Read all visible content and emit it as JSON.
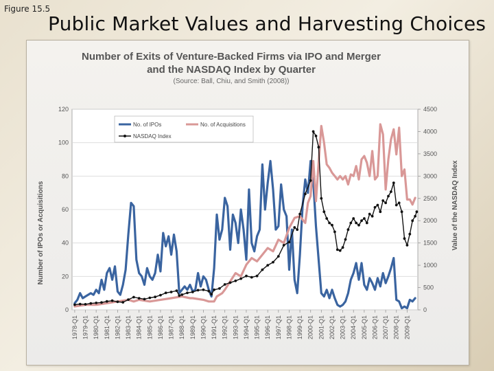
{
  "slide": {
    "figure_label": "Figure 15.5",
    "title": "Public Market Values and Harvesting Choices"
  },
  "chart_data": {
    "type": "line",
    "title_line1": "Number of Exits of Venture-Backed Firms via IPO and Merger",
    "title_line2": "and the NASDAQ Index by Quarter",
    "source": "(Source:  Ball, Chiu, and Smith (2008))",
    "ylabel_left": "Number of IPOs or Acquisitions",
    "ylabel_right": "Value of the NASDAQ Index",
    "ylim_left": [
      0,
      120
    ],
    "ylim_right": [
      0,
      4500
    ],
    "yticks_left": [
      "0",
      "20",
      "40",
      "60",
      "80",
      "100",
      "120"
    ],
    "yticks_right": [
      "0",
      "500",
      "1000",
      "1500",
      "2000",
      "2500",
      "3000",
      "3500",
      "4000",
      "4500"
    ],
    "x_tick_labels": [
      "1978-Q1",
      "1979-Q1",
      "1980-Q1",
      "1981-Q1",
      "1982-Q1",
      "1983-Q1",
      "1984-Q1",
      "1985-Q1",
      "1986-Q1",
      "1987-Q1",
      "1988-Q1",
      "1989-Q1",
      "1990-Q1",
      "1991-Q1",
      "1992-Q1",
      "1993-Q1",
      "1994-Q1",
      "1995-Q1",
      "1996-Q1",
      "1997-Q1",
      "1998-Q1",
      "1999-Q1",
      "2000-Q1",
      "2001-Q1",
      "2002-Q1",
      "2003-Q1",
      "2004-Q1",
      "2005-Q1",
      "2006-Q1",
      "2007-Q1",
      "2008-Q1",
      "2009-Q1"
    ],
    "grid": true,
    "legend_position": "top-left",
    "series": [
      {
        "name": "No. of IPOs",
        "axis": "left",
        "color": "#3a64a0",
        "points": [
          [
            1978.0,
            4
          ],
          [
            1978.25,
            6
          ],
          [
            1978.5,
            10
          ],
          [
            1978.75,
            7
          ],
          [
            1979.0,
            8
          ],
          [
            1979.25,
            9
          ],
          [
            1979.5,
            10
          ],
          [
            1979.75,
            9
          ],
          [
            1980.0,
            12
          ],
          [
            1980.25,
            10
          ],
          [
            1980.5,
            18
          ],
          [
            1980.75,
            12
          ],
          [
            1981.0,
            22
          ],
          [
            1981.25,
            25
          ],
          [
            1981.5,
            18
          ],
          [
            1981.75,
            26
          ],
          [
            1982.0,
            11
          ],
          [
            1982.25,
            9
          ],
          [
            1982.5,
            15
          ],
          [
            1982.75,
            24
          ],
          [
            1983.0,
            45
          ],
          [
            1983.25,
            64
          ],
          [
            1983.5,
            62
          ],
          [
            1983.75,
            30
          ],
          [
            1984.0,
            22
          ],
          [
            1984.25,
            20
          ],
          [
            1984.5,
            15
          ],
          [
            1984.75,
            25
          ],
          [
            1985.0,
            20
          ],
          [
            1985.25,
            18
          ],
          [
            1985.5,
            22
          ],
          [
            1985.75,
            33
          ],
          [
            1986.0,
            23
          ],
          [
            1986.25,
            46
          ],
          [
            1986.5,
            38
          ],
          [
            1986.75,
            44
          ],
          [
            1987.0,
            33
          ],
          [
            1987.25,
            45
          ],
          [
            1987.5,
            35
          ],
          [
            1987.75,
            10
          ],
          [
            1988.0,
            12
          ],
          [
            1988.25,
            14
          ],
          [
            1988.5,
            12
          ],
          [
            1988.75,
            15
          ],
          [
            1989.0,
            11
          ],
          [
            1989.25,
            12
          ],
          [
            1989.5,
            22
          ],
          [
            1989.75,
            14
          ],
          [
            1990.0,
            20
          ],
          [
            1990.25,
            18
          ],
          [
            1990.5,
            12
          ],
          [
            1990.75,
            8
          ],
          [
            1991.0,
            25
          ],
          [
            1991.25,
            57
          ],
          [
            1991.5,
            42
          ],
          [
            1991.75,
            48
          ],
          [
            1992.0,
            67
          ],
          [
            1992.25,
            62
          ],
          [
            1992.5,
            36
          ],
          [
            1992.75,
            57
          ],
          [
            1993.0,
            52
          ],
          [
            1993.25,
            40
          ],
          [
            1993.5,
            60
          ],
          [
            1993.75,
            48
          ],
          [
            1994.0,
            30
          ],
          [
            1994.25,
            72
          ],
          [
            1994.5,
            40
          ],
          [
            1994.75,
            35
          ],
          [
            1995.0,
            44
          ],
          [
            1995.25,
            48
          ],
          [
            1995.5,
            87
          ],
          [
            1995.75,
            60
          ],
          [
            1996.0,
            76
          ],
          [
            1996.25,
            89
          ],
          [
            1996.5,
            72
          ],
          [
            1996.75,
            48
          ],
          [
            1997.0,
            50
          ],
          [
            1997.25,
            75
          ],
          [
            1997.5,
            60
          ],
          [
            1997.75,
            56
          ],
          [
            1998.0,
            24
          ],
          [
            1998.25,
            48
          ],
          [
            1998.5,
            18
          ],
          [
            1998.75,
            10
          ],
          [
            1999.0,
            33
          ],
          [
            1999.25,
            62
          ],
          [
            1999.5,
            78
          ],
          [
            1999.75,
            70
          ],
          [
            2000.0,
            89
          ],
          [
            2000.25,
            77
          ],
          [
            2000.5,
            50
          ],
          [
            2000.75,
            30
          ],
          [
            2001.0,
            10
          ],
          [
            2001.25,
            8
          ],
          [
            2001.5,
            12
          ],
          [
            2001.75,
            7
          ],
          [
            2002.0,
            12
          ],
          [
            2002.25,
            7
          ],
          [
            2002.5,
            3
          ],
          [
            2002.75,
            2
          ],
          [
            2003.0,
            3
          ],
          [
            2003.25,
            5
          ],
          [
            2003.5,
            10
          ],
          [
            2003.75,
            18
          ],
          [
            2004.0,
            22
          ],
          [
            2004.25,
            28
          ],
          [
            2004.5,
            18
          ],
          [
            2004.75,
            28
          ],
          [
            2005.0,
            15
          ],
          [
            2005.25,
            12
          ],
          [
            2005.5,
            19
          ],
          [
            2005.75,
            16
          ],
          [
            2006.0,
            12
          ],
          [
            2006.25,
            19
          ],
          [
            2006.5,
            14
          ],
          [
            2006.75,
            22
          ],
          [
            2007.0,
            16
          ],
          [
            2007.25,
            20
          ],
          [
            2007.5,
            25
          ],
          [
            2007.75,
            31
          ],
          [
            2008.0,
            6
          ],
          [
            2008.25,
            5
          ],
          [
            2008.5,
            1
          ],
          [
            2008.75,
            2
          ],
          [
            2009.0,
            1
          ],
          [
            2009.25,
            6
          ],
          [
            2009.5,
            5
          ],
          [
            2009.75,
            7
          ]
        ]
      },
      {
        "name": "No. of Acquisitions",
        "axis": "left",
        "color": "#d99897",
        "points": [
          [
            1978.0,
            2
          ],
          [
            1979.0,
            3
          ],
          [
            1980.0,
            3
          ],
          [
            1981.0,
            4
          ],
          [
            1982.0,
            5
          ],
          [
            1983.0,
            6
          ],
          [
            1983.5,
            5
          ],
          [
            1984.0,
            6
          ],
          [
            1985.0,
            5
          ],
          [
            1986.0,
            6
          ],
          [
            1987.0,
            7
          ],
          [
            1988.0,
            8
          ],
          [
            1988.75,
            7
          ],
          [
            1989.0,
            7
          ],
          [
            1990.0,
            6
          ],
          [
            1990.5,
            5
          ],
          [
            1991.0,
            5
          ],
          [
            1991.25,
            8
          ],
          [
            1991.75,
            10
          ],
          [
            1992.0,
            12
          ],
          [
            1992.5,
            17
          ],
          [
            1993.0,
            22
          ],
          [
            1993.5,
            20
          ],
          [
            1994.0,
            27
          ],
          [
            1994.5,
            31
          ],
          [
            1995.0,
            29
          ],
          [
            1995.5,
            33
          ],
          [
            1996.0,
            37
          ],
          [
            1996.5,
            35
          ],
          [
            1997.0,
            42
          ],
          [
            1997.5,
            40
          ],
          [
            1998.0,
            49
          ],
          [
            1998.5,
            55
          ],
          [
            1999.0,
            56
          ],
          [
            1999.5,
            52
          ],
          [
            1999.75,
            64
          ],
          [
            2000.0,
            68
          ],
          [
            2000.25,
            89
          ],
          [
            2000.5,
            65
          ],
          [
            2000.75,
            88
          ],
          [
            2001.0,
            110
          ],
          [
            2001.25,
            100
          ],
          [
            2001.5,
            87
          ],
          [
            2001.75,
            85
          ],
          [
            2002.0,
            82
          ],
          [
            2002.25,
            80
          ],
          [
            2002.5,
            78
          ],
          [
            2002.75,
            80
          ],
          [
            2003.0,
            78
          ],
          [
            2003.25,
            80
          ],
          [
            2003.5,
            75
          ],
          [
            2003.75,
            81
          ],
          [
            2004.0,
            80
          ],
          [
            2004.25,
            86
          ],
          [
            2004.5,
            78
          ],
          [
            2004.75,
            90
          ],
          [
            2005.0,
            92
          ],
          [
            2005.25,
            88
          ],
          [
            2005.5,
            80
          ],
          [
            2005.75,
            95
          ],
          [
            2006.0,
            78
          ],
          [
            2006.25,
            80
          ],
          [
            2006.5,
            111
          ],
          [
            2006.75,
            105
          ],
          [
            2007.0,
            72
          ],
          [
            2007.25,
            90
          ],
          [
            2007.5,
            102
          ],
          [
            2007.75,
            108
          ],
          [
            2008.0,
            93
          ],
          [
            2008.25,
            109
          ],
          [
            2008.5,
            80
          ],
          [
            2008.75,
            84
          ],
          [
            2009.0,
            66
          ],
          [
            2009.25,
            66
          ],
          [
            2009.5,
            63
          ],
          [
            2009.75,
            67
          ]
        ]
      },
      {
        "name": "NASDAQ Index",
        "axis": "right",
        "color": "#111111",
        "points": [
          [
            1978.0,
            115
          ],
          [
            1978.5,
            130
          ],
          [
            1979.0,
            125
          ],
          [
            1979.5,
            145
          ],
          [
            1980.0,
            155
          ],
          [
            1980.5,
            165
          ],
          [
            1981.0,
            190
          ],
          [
            1981.5,
            205
          ],
          [
            1982.0,
            180
          ],
          [
            1982.5,
            170
          ],
          [
            1983.0,
            230
          ],
          [
            1983.5,
            285
          ],
          [
            1984.0,
            260
          ],
          [
            1984.5,
            240
          ],
          [
            1985.0,
            270
          ],
          [
            1985.5,
            290
          ],
          [
            1986.0,
            330
          ],
          [
            1986.5,
            380
          ],
          [
            1987.0,
            400
          ],
          [
            1987.5,
            430
          ],
          [
            1987.75,
            320
          ],
          [
            1988.0,
            340
          ],
          [
            1988.5,
            380
          ],
          [
            1989.0,
            400
          ],
          [
            1989.5,
            440
          ],
          [
            1990.0,
            450
          ],
          [
            1990.5,
            420
          ],
          [
            1990.75,
            350
          ],
          [
            1991.0,
            450
          ],
          [
            1991.5,
            480
          ],
          [
            1992.0,
            570
          ],
          [
            1992.5,
            610
          ],
          [
            1993.0,
            650
          ],
          [
            1993.5,
            700
          ],
          [
            1994.0,
            760
          ],
          [
            1994.5,
            730
          ],
          [
            1995.0,
            760
          ],
          [
            1995.5,
            900
          ],
          [
            1996.0,
            1000
          ],
          [
            1996.5,
            1070
          ],
          [
            1997.0,
            1200
          ],
          [
            1997.5,
            1450
          ],
          [
            1998.0,
            1520
          ],
          [
            1998.5,
            1850
          ],
          [
            1998.75,
            1800
          ],
          [
            1999.0,
            2150
          ],
          [
            1999.5,
            2600
          ],
          [
            2000.0,
            2900
          ],
          [
            2000.25,
            4000
          ],
          [
            2000.5,
            3900
          ],
          [
            2000.75,
            3650
          ],
          [
            2001.0,
            2500
          ],
          [
            2001.25,
            2200
          ],
          [
            2001.5,
            2050
          ],
          [
            2001.75,
            1950
          ],
          [
            2002.0,
            1900
          ],
          [
            2002.25,
            1750
          ],
          [
            2002.5,
            1350
          ],
          [
            2002.75,
            1330
          ],
          [
            2003.0,
            1400
          ],
          [
            2003.25,
            1580
          ],
          [
            2003.5,
            1800
          ],
          [
            2003.75,
            1950
          ],
          [
            2004.0,
            2050
          ],
          [
            2004.25,
            1950
          ],
          [
            2004.5,
            1900
          ],
          [
            2004.75,
            2000
          ],
          [
            2005.0,
            2050
          ],
          [
            2005.25,
            1950
          ],
          [
            2005.5,
            2150
          ],
          [
            2005.75,
            2100
          ],
          [
            2006.0,
            2300
          ],
          [
            2006.25,
            2350
          ],
          [
            2006.5,
            2200
          ],
          [
            2006.75,
            2450
          ],
          [
            2007.0,
            2400
          ],
          [
            2007.25,
            2550
          ],
          [
            2007.5,
            2650
          ],
          [
            2007.75,
            2850
          ],
          [
            2008.0,
            2350
          ],
          [
            2008.25,
            2400
          ],
          [
            2008.5,
            2200
          ],
          [
            2008.75,
            1600
          ],
          [
            2009.0,
            1450
          ],
          [
            2009.25,
            1700
          ],
          [
            2009.5,
            2000
          ],
          [
            2009.75,
            2100
          ],
          [
            2009.9,
            2200
          ]
        ]
      }
    ]
  }
}
